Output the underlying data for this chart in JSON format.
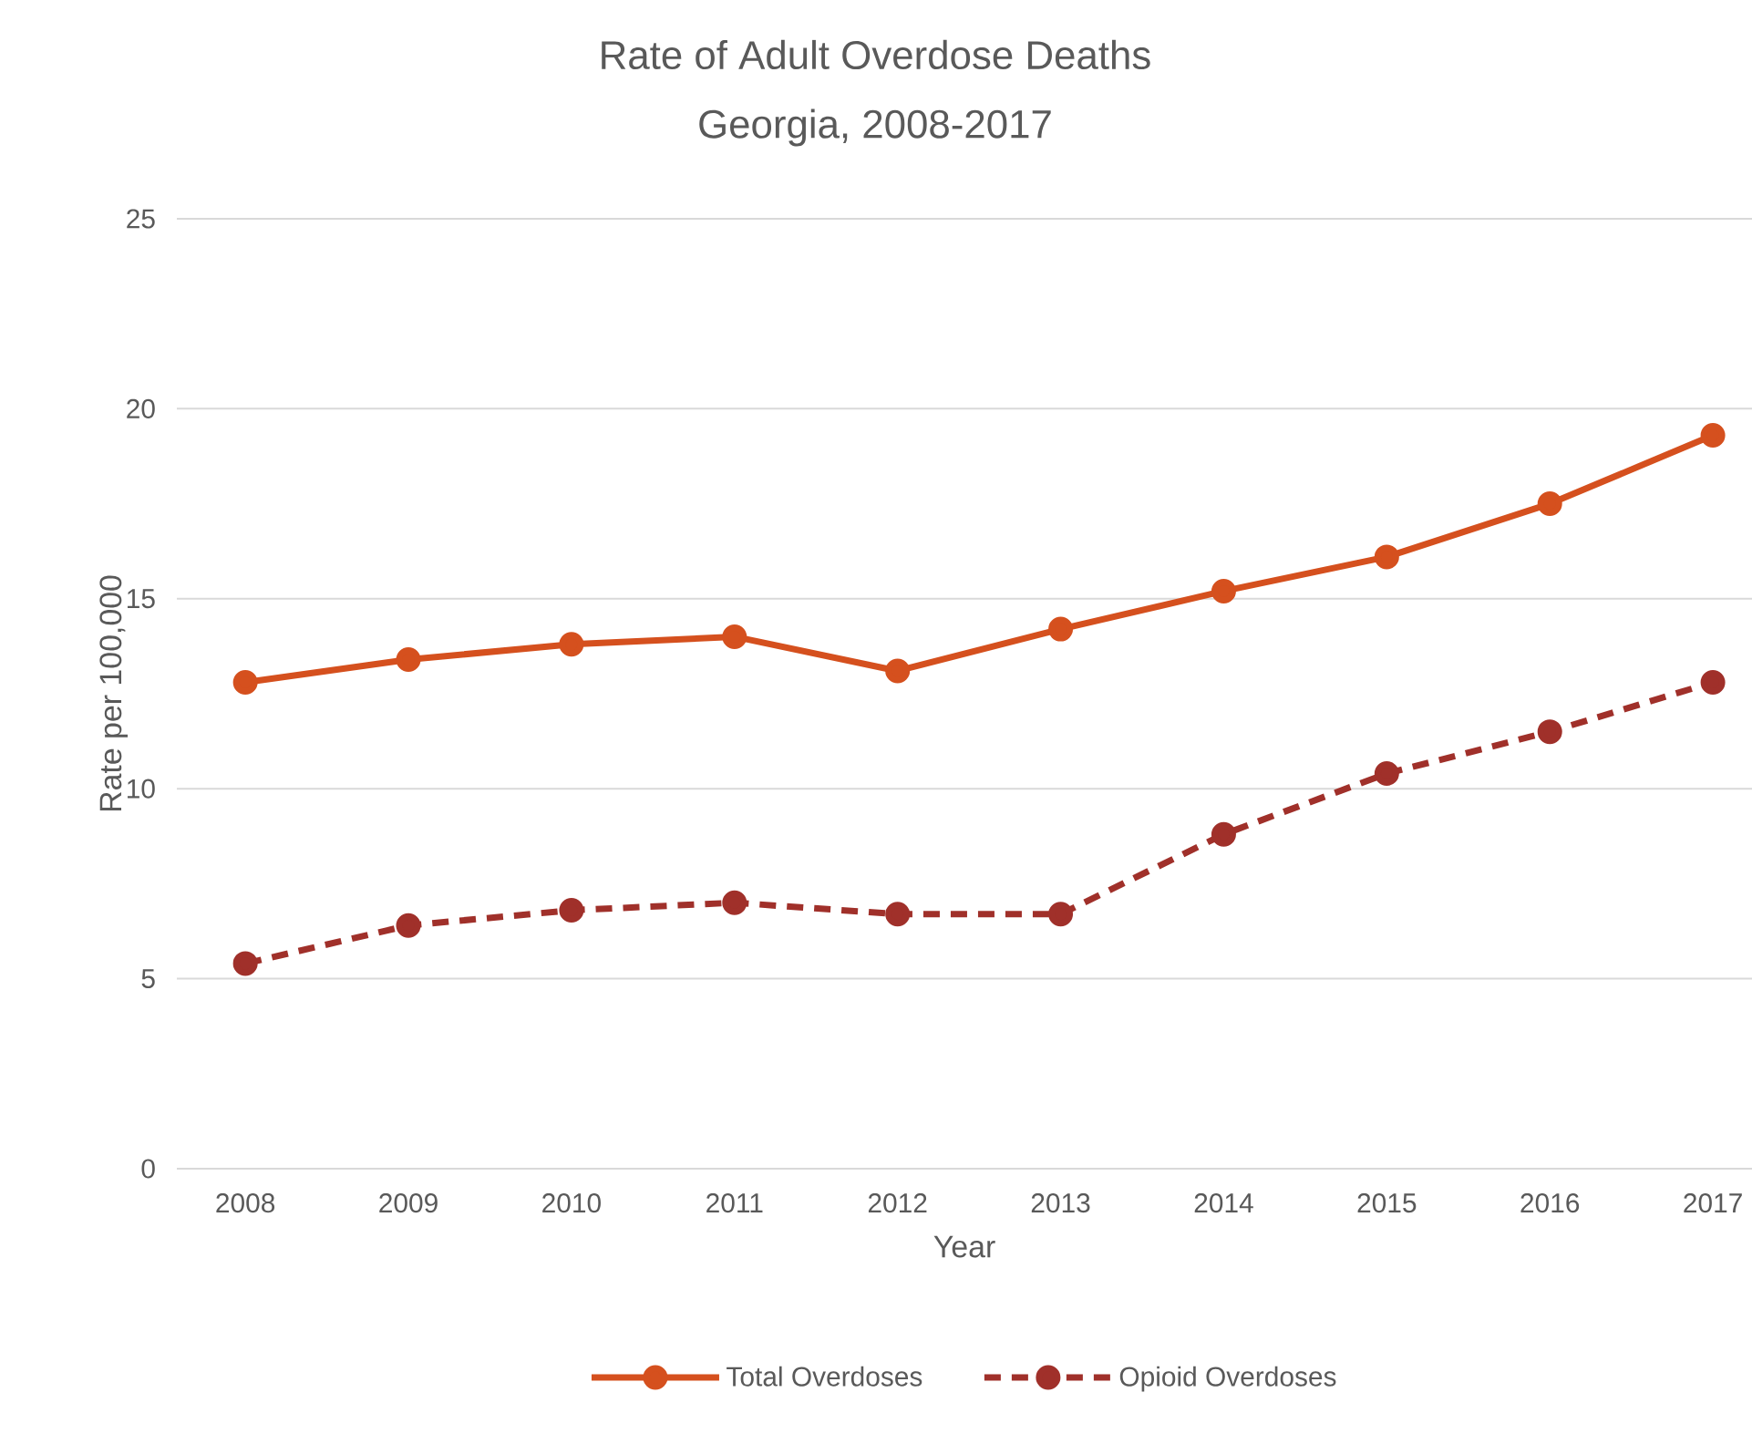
{
  "chart_data": {
    "type": "line",
    "title": "Rate of Adult Overdose Deaths",
    "subtitle": "Georgia, 2008-2017",
    "xlabel": "Year",
    "ylabel": "Rate per 100,000",
    "categories": [
      "2008",
      "2009",
      "2010",
      "2011",
      "2012",
      "2013",
      "2014",
      "2015",
      "2016",
      "2017"
    ],
    "series": [
      {
        "name": "Total Overdoses",
        "color": "#d5501e",
        "line_style": "solid",
        "values": [
          12.8,
          13.4,
          13.8,
          14.0,
          13.1,
          14.2,
          15.2,
          16.1,
          17.5,
          19.3
        ]
      },
      {
        "name": "Opioid Overdoses",
        "color": "#a0302a",
        "line_style": "dashed",
        "values": [
          5.4,
          6.4,
          6.8,
          7.0,
          6.7,
          6.7,
          8.8,
          10.4,
          11.5,
          12.8
        ]
      }
    ],
    "ylim": [
      0,
      25
    ],
    "yticks": [
      0,
      5,
      10,
      15,
      20,
      25
    ],
    "grid": "y",
    "legend": "bottom",
    "marker": "circle"
  }
}
